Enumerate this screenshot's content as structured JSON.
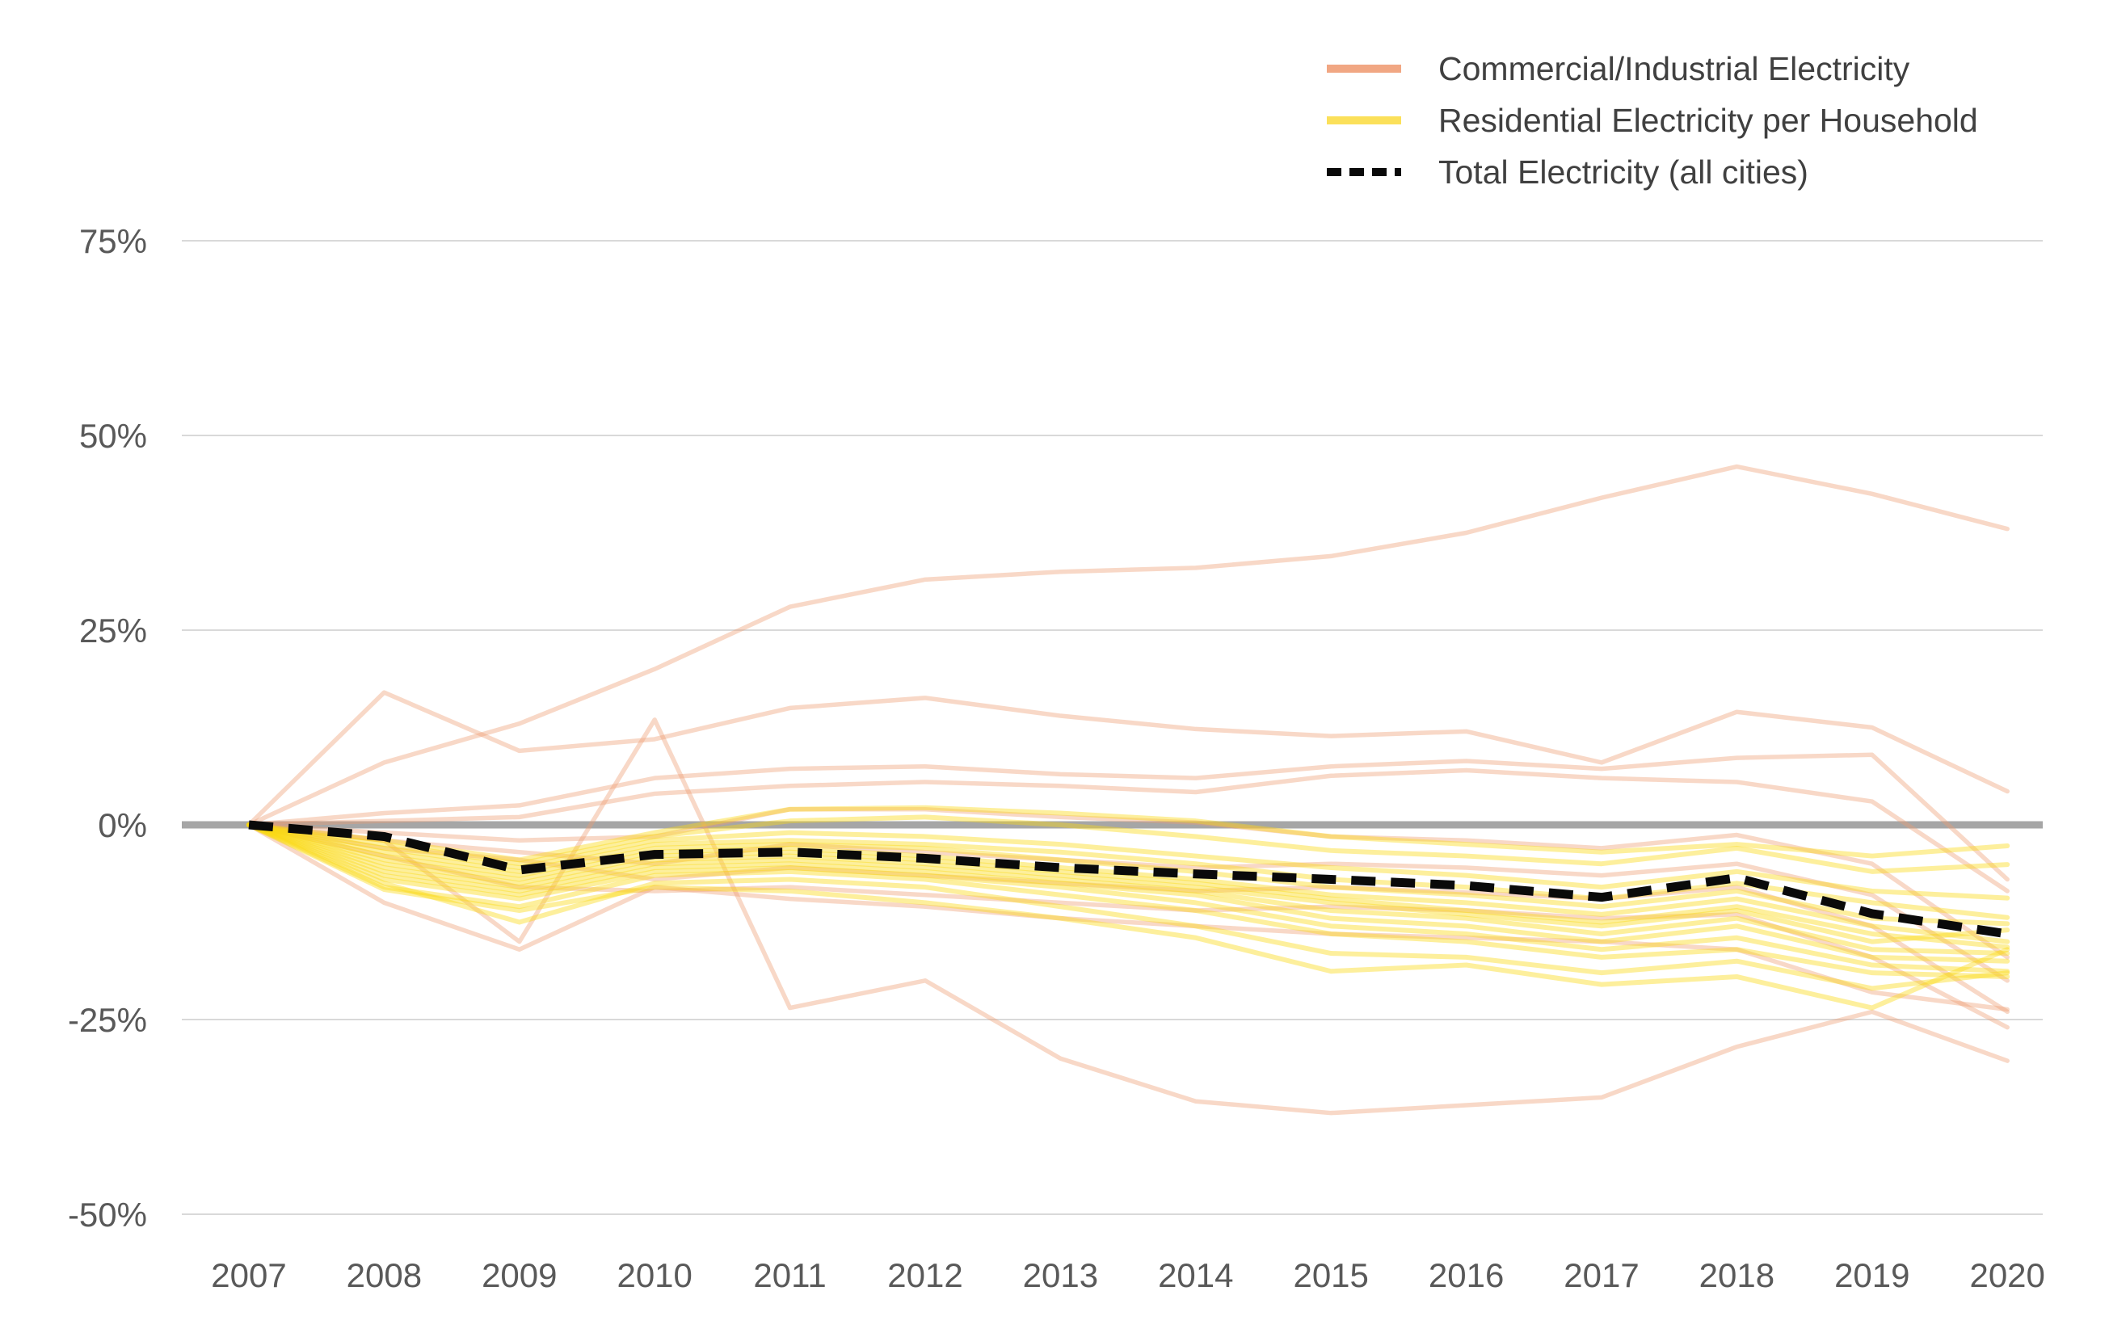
{
  "chart_data": {
    "type": "line",
    "x": [
      2007,
      2008,
      2009,
      2010,
      2011,
      2012,
      2013,
      2014,
      2015,
      2016,
      2017,
      2018,
      2019,
      2020
    ],
    "ylim": [
      -50,
      75
    ],
    "ytick_values": [
      75,
      50,
      25,
      0,
      -25,
      -50
    ],
    "ytick_labels": [
      "75%",
      "50%",
      "25%",
      "0%",
      "-25%",
      "-50%"
    ],
    "xtick_labels": [
      "2007",
      "2008",
      "2009",
      "2010",
      "2011",
      "2012",
      "2013",
      "2014",
      "2015",
      "2016",
      "2017",
      "2018",
      "2019",
      "2020"
    ],
    "grid": true,
    "legend_position": "top-right",
    "legend": [
      {
        "label": "Commercial/Industrial Electricity",
        "group": "commercial",
        "dash": false
      },
      {
        "label": "Residential Electricity per Household",
        "group": "residential",
        "dash": false
      },
      {
        "label": "Total Electricity (all cities)",
        "group": "total",
        "dash": true
      }
    ],
    "style": {
      "commercial_color": "#ED9D72",
      "commercial_opacity": 0.4,
      "commercial_width": 5.5,
      "residential_color": "#FBD914",
      "residential_opacity": 0.42,
      "residential_width": 6,
      "total_color": "#0A0A0A",
      "total_width": 11,
      "total_dash": "30 19",
      "legend_commercial_color": "#F1A783",
      "legend_residential_color": "#FBE05A",
      "grid_color": "#D9D9D9",
      "zero_line_color": "#A6A6A6",
      "axis_label_color": "#595959"
    },
    "series": [
      {
        "name": "commercial-line-1",
        "group": "commercial",
        "values": [
          0,
          8,
          13,
          20,
          28,
          31.5,
          32.5,
          33,
          34.5,
          37.5,
          42,
          46,
          42.5,
          38
        ]
      },
      {
        "name": "commercial-line-2",
        "group": "commercial",
        "values": [
          0,
          17,
          9.5,
          11,
          15,
          16.3,
          14,
          12.3,
          11.4,
          12,
          8,
          14.5,
          12.5,
          4.3
        ]
      },
      {
        "name": "commercial-line-3",
        "group": "commercial",
        "values": [
          0,
          1.5,
          2.5,
          6,
          7.2,
          7.5,
          6.5,
          6,
          7.5,
          8.2,
          7.2,
          8.6,
          9,
          -7
        ]
      },
      {
        "name": "commercial-line-4",
        "group": "commercial",
        "values": [
          0,
          0.5,
          1,
          4,
          5,
          5.5,
          5,
          4.2,
          6.3,
          7,
          6,
          5.5,
          3,
          -8.5
        ]
      },
      {
        "name": "commercial-line-5",
        "group": "commercial",
        "values": [
          0,
          -1,
          -2,
          -1.5,
          2,
          2,
          1,
          0.3,
          -1.5,
          -2,
          -3,
          -1.3,
          -5,
          -17
        ]
      },
      {
        "name": "commercial-line-6",
        "group": "commercial",
        "values": [
          0,
          -2,
          -3.5,
          -5,
          -2.5,
          -3.5,
          -4.5,
          -5.5,
          -5,
          -5.5,
          -6.5,
          -5,
          -9,
          -20
        ]
      },
      {
        "name": "commercial-line-7",
        "group": "commercial",
        "values": [
          0,
          -3,
          -4.5,
          -7,
          -5.5,
          -6.5,
          -7.5,
          -8.5,
          -8,
          -8.7,
          -9.5,
          -8,
          -13,
          -24
        ]
      },
      {
        "name": "commercial-line-8",
        "group": "commercial",
        "values": [
          0,
          -4,
          -8,
          -8.5,
          -8,
          -9,
          -10,
          -11,
          -10.5,
          -11,
          -12,
          -11.5,
          -17,
          -26
        ]
      },
      {
        "name": "commercial-line-9",
        "group": "commercial",
        "values": [
          0,
          -10,
          -16,
          -8,
          -9.5,
          -10.5,
          -12,
          -13,
          -14,
          -14.5,
          -15,
          -16,
          -21.5,
          -23.7
        ]
      },
      {
        "name": "commercial-line-10",
        "group": "commercial",
        "values": [
          0,
          -2,
          -15,
          13.5,
          -23.5,
          -20,
          -30,
          -35.5,
          -37,
          -36,
          -35,
          -28.5,
          -24,
          -30.3
        ]
      },
      {
        "name": "residential-line-1",
        "group": "residential",
        "values": [
          0,
          -2,
          -4.5,
          -1,
          2,
          2.2,
          1.5,
          0.5,
          -1.5,
          -2.5,
          -3.5,
          -2.5,
          -4,
          -2.7
        ]
      },
      {
        "name": "residential-line-2",
        "group": "residential",
        "values": [
          0,
          -2.5,
          -5,
          -1.5,
          0.5,
          1,
          0,
          -1.5,
          -3.3,
          -4,
          -5,
          -3,
          -6,
          -5.1
        ]
      },
      {
        "name": "residential-line-3",
        "group": "residential",
        "values": [
          0,
          -3,
          -5.5,
          -2,
          -1,
          -1.5,
          -2.5,
          -4,
          -5.5,
          -6.5,
          -8,
          -6,
          -8.5,
          -9.4
        ]
      },
      {
        "name": "residential-line-4",
        "group": "residential",
        "values": [
          0,
          -3.5,
          -6,
          -2.5,
          -2,
          -2.5,
          -3.5,
          -5,
          -7,
          -8,
          -9.5,
          -7.5,
          -10,
          -11.9
        ]
      },
      {
        "name": "residential-line-5",
        "group": "residential",
        "values": [
          0,
          -4,
          -6.5,
          -3,
          -2.5,
          -3,
          -4.5,
          -6,
          -8,
          -9,
          -10.5,
          -8.5,
          -12,
          -12.7
        ]
      },
      {
        "name": "residential-line-6",
        "group": "residential",
        "values": [
          0,
          -4.5,
          -7,
          -3.5,
          -3,
          -4,
          -5.5,
          -7,
          -9,
          -10,
          -11.5,
          -9.5,
          -13,
          -15
        ]
      },
      {
        "name": "residential-line-7",
        "group": "residential",
        "values": [
          0,
          -5,
          -7.5,
          -4,
          -3.5,
          -4.5,
          -6,
          -7.5,
          -9.5,
          -11,
          -12.5,
          -10.5,
          -14,
          -15.7
        ]
      },
      {
        "name": "residential-line-8",
        "group": "residential",
        "values": [
          0,
          -5.5,
          -8,
          -4.5,
          -4,
          -5,
          -6.5,
          -8,
          -10,
          -11.5,
          -13,
          -11,
          -15,
          -13.5
        ]
      },
      {
        "name": "residential-line-9",
        "group": "residential",
        "values": [
          0,
          -6,
          -8.5,
          -5,
          -4.5,
          -5.5,
          -7,
          -8.5,
          -11,
          -12,
          -14,
          -12,
          -16,
          -16.5
        ]
      },
      {
        "name": "residential-line-10",
        "group": "residential",
        "values": [
          0,
          -6.5,
          -9,
          -5.5,
          -5,
          -6,
          -7.5,
          -9,
          -12,
          -13,
          -15,
          -13,
          -17,
          -17.5
        ]
      },
      {
        "name": "residential-line-11",
        "group": "residential",
        "values": [
          0,
          -7,
          -9.5,
          -6,
          -5.5,
          -6.5,
          -8,
          -10,
          -13,
          -14,
          -16,
          -14.5,
          -18,
          -18.8
        ]
      },
      {
        "name": "residential-line-12",
        "group": "residential",
        "values": [
          0,
          -8,
          -10.5,
          -6.5,
          -6,
          -7,
          -9,
          -11,
          -14,
          -15,
          -17,
          -16,
          -19,
          -19.5
        ]
      },
      {
        "name": "residential-line-13",
        "group": "residential",
        "values": [
          0,
          -7.5,
          -12.5,
          -7.5,
          -7,
          -8,
          -10.5,
          -13,
          -16.5,
          -17,
          -19,
          -17.5,
          -21,
          -19
        ]
      },
      {
        "name": "residential-line-14",
        "group": "residential",
        "values": [
          0,
          -8.3,
          -11,
          -8,
          -8.5,
          -10,
          -12,
          -14.5,
          -18.8,
          -18,
          -20.5,
          -19.5,
          -23.5,
          -16
        ]
      },
      {
        "name": "total-line",
        "group": "total",
        "values": [
          0,
          -1.5,
          -5.8,
          -3.8,
          -3.5,
          -4.3,
          -5.5,
          -6.3,
          -7,
          -7.8,
          -9.3,
          -6.8,
          -11.4,
          -14
        ]
      }
    ]
  },
  "legend": {
    "item1": "Commercial/Industrial Electricity",
    "item2": "Residential Electricity per Household",
    "item3": "Total Electricity (all cities)"
  }
}
